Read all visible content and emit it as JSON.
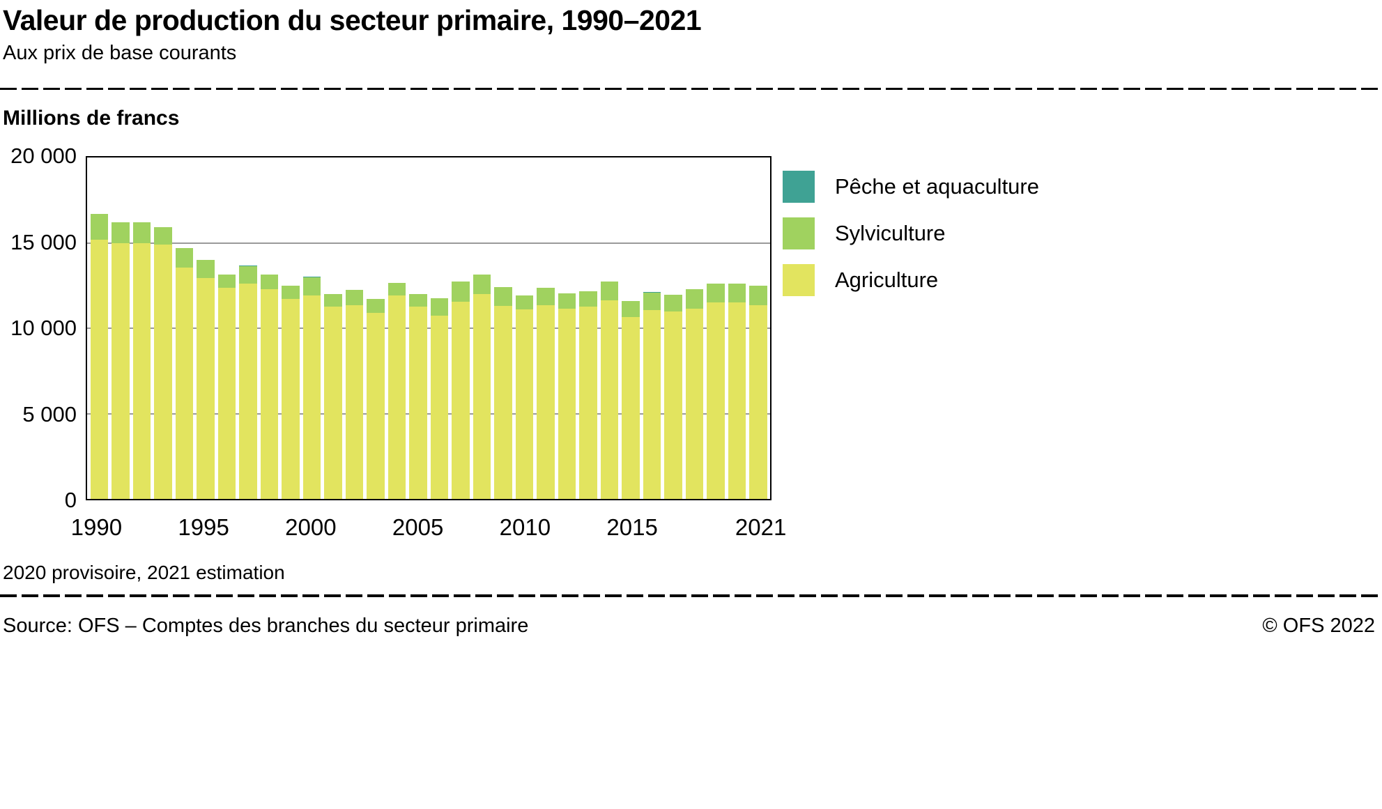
{
  "header": {
    "title": "Valeur de production du secteur primaire, 1990–2021",
    "subtitle": "Aux prix de base courants"
  },
  "chart": {
    "y_axis_title": "Millions de francs",
    "y_ticks": [
      {
        "label": "20 000",
        "value": 20000
      },
      {
        "label": "15 000",
        "value": 15000
      },
      {
        "label": "10 000",
        "value": 10000
      },
      {
        "label": "5 000",
        "value": 5000
      },
      {
        "label": "0",
        "value": 0
      }
    ],
    "legend": [
      {
        "label": "Pêche et aquaculture",
        "color": "#3fa294"
      },
      {
        "label": "Sylviculture",
        "color": "#a0d25f"
      },
      {
        "label": "Agriculture",
        "color": "#e2e45f"
      }
    ]
  },
  "chart_data": {
    "type": "bar",
    "stacked": true,
    "title": "Valeur de production du secteur primaire, 1990–2021",
    "ylabel": "Millions de francs",
    "ylim": [
      0,
      20000
    ],
    "gridlines": [
      5000,
      10000,
      15000
    ],
    "legend_position": "right",
    "x": [
      1990,
      1991,
      1992,
      1993,
      1994,
      1995,
      1996,
      1997,
      1998,
      1999,
      2000,
      2001,
      2002,
      2003,
      2004,
      2005,
      2006,
      2007,
      2008,
      2009,
      2010,
      2011,
      2012,
      2013,
      2014,
      2015,
      2016,
      2017,
      2018,
      2019,
      2020,
      2021
    ],
    "x_tick_labels": [
      {
        "label": "1990",
        "index": 0
      },
      {
        "label": "1995",
        "index": 5
      },
      {
        "label": "2000",
        "index": 10
      },
      {
        "label": "2005",
        "index": 15
      },
      {
        "label": "2010",
        "index": 20
      },
      {
        "label": "2015",
        "index": 25
      },
      {
        "label": "2021",
        "index": 31
      }
    ],
    "series": [
      {
        "name": "Agriculture",
        "color": "#e2e45f",
        "values": [
          15200,
          15000,
          15000,
          14900,
          13550,
          12950,
          12350,
          12600,
          12300,
          11700,
          11900,
          11250,
          11350,
          10900,
          11900,
          11250,
          10750,
          11550,
          12000,
          11300,
          11100,
          11350,
          11150,
          11250,
          11650,
          10650,
          11050,
          11000,
          11150,
          11500,
          11500,
          11350
        ]
      },
      {
        "name": "Sylviculture",
        "color": "#a0d25f",
        "values": [
          1500,
          1200,
          1200,
          1000,
          1150,
          1050,
          800,
          1050,
          850,
          800,
          1100,
          750,
          900,
          800,
          750,
          750,
          1000,
          1200,
          1150,
          1100,
          800,
          1000,
          900,
          900,
          1100,
          950,
          1050,
          950,
          1150,
          1100,
          1100,
          1150
        ]
      },
      {
        "name": "Pêche et aquaculture",
        "color": "#3fa294",
        "values": [
          5,
          5,
          5,
          5,
          5,
          5,
          5,
          5,
          5,
          5,
          5,
          5,
          5,
          5,
          5,
          5,
          5,
          5,
          5,
          5,
          5,
          5,
          5,
          5,
          5,
          5,
          5,
          5,
          5,
          5,
          5,
          5
        ]
      }
    ]
  },
  "footnote": "2020 provisoire, 2021 estimation",
  "footer": {
    "source": "Source: OFS – Comptes des branches du secteur primaire",
    "copyright": "© OFS 2022"
  }
}
